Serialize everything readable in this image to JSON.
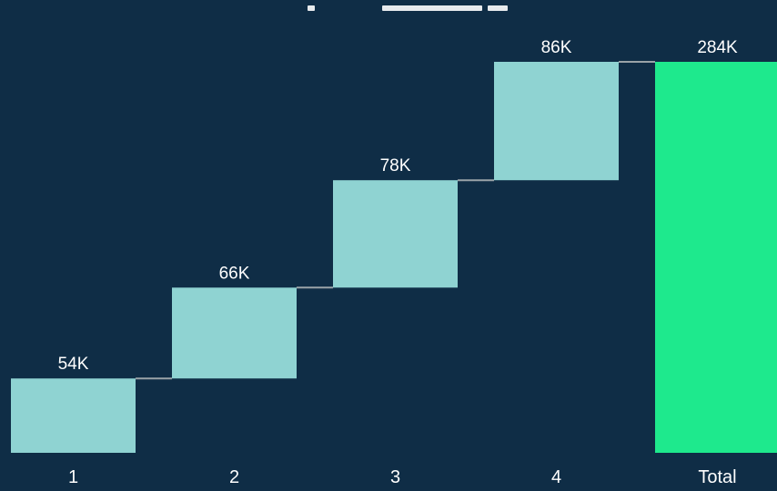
{
  "background_color": "#0f2d46",
  "chart_data": {
    "type": "bar",
    "subtype": "waterfall",
    "title": "",
    "xlabel": "",
    "ylabel": "",
    "ylim": [
      0,
      284000
    ],
    "grid": false,
    "legend": "none",
    "categories": [
      "1",
      "2",
      "3",
      "4",
      "Total"
    ],
    "values": [
      54000,
      66000,
      78000,
      86000,
      284000
    ],
    "labels": [
      "54K",
      "66K",
      "78K",
      "86K",
      "284K"
    ],
    "is_total": [
      false,
      false,
      false,
      false,
      true
    ],
    "colors": {
      "increase": "#8fd3d2",
      "total": "#1ee98d",
      "connector": "#9aa3a8",
      "text": "#ffffff"
    }
  }
}
